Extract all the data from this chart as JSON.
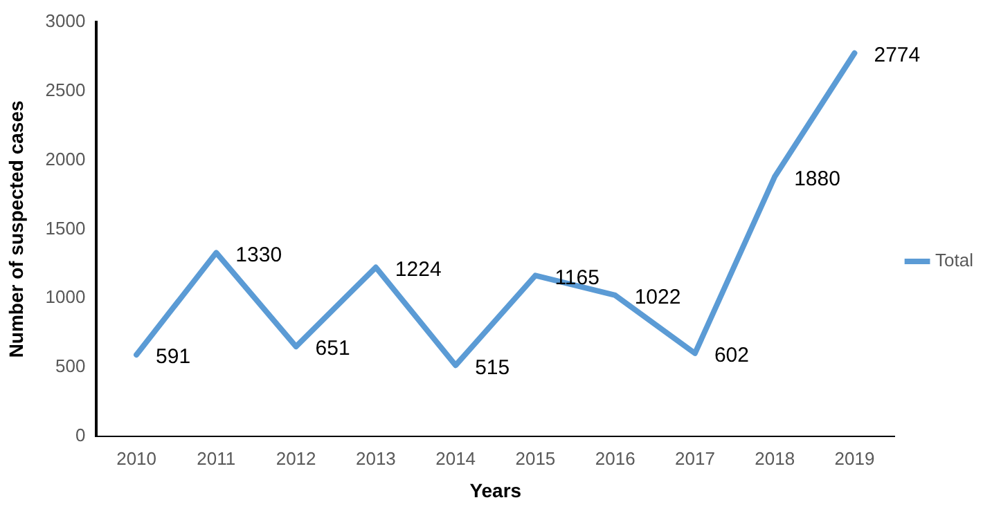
{
  "chart_data": {
    "type": "line",
    "xlabel": "Years",
    "ylabel": "Number of suspected cases",
    "categories": [
      "2010",
      "2011",
      "2012",
      "2013",
      "2014",
      "2015",
      "2016",
      "2017",
      "2018",
      "2019"
    ],
    "series": [
      {
        "name": "Total",
        "color": "#5b9bd5",
        "values": [
          591,
          1330,
          651,
          1224,
          515,
          1165,
          1022,
          602,
          1880,
          2774
        ]
      }
    ],
    "ylim": [
      0,
      3000
    ],
    "yticks": [
      0,
      500,
      1000,
      1500,
      2000,
      2500,
      3000
    ],
    "grid": false,
    "legend": "right",
    "marker": "none",
    "line_style": "solid",
    "data_labels": true
  }
}
